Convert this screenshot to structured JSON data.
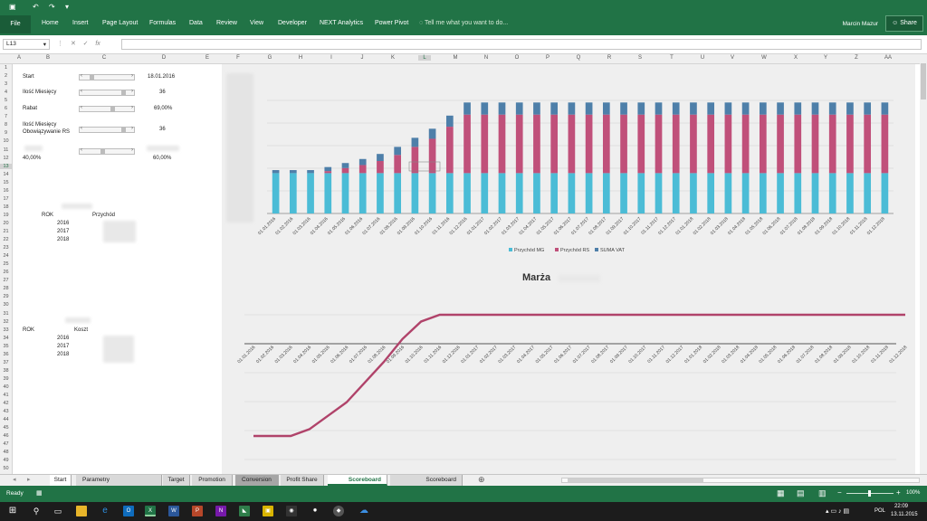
{
  "app": {
    "quick_access": [
      "↶",
      "↷",
      "▾"
    ]
  },
  "ribbon": {
    "file": "File",
    "tabs": [
      "Home",
      "Insert",
      "Page Layout",
      "Formulas",
      "Data",
      "Review",
      "View",
      "Developer",
      "NEXT Analytics",
      "Power Pivot"
    ],
    "tell_me": "Tell me what you want to do...",
    "user": "Marcin Mazur",
    "share": "Share"
  },
  "formula_bar": {
    "name_box": "L13",
    "fx": "fx",
    "formula": ""
  },
  "columns": [
    "A",
    "B",
    "C",
    "D",
    "E",
    "F",
    "G",
    "H",
    "I",
    "J",
    "K",
    "L",
    "M",
    "N",
    "O",
    "P",
    "Q",
    "R",
    "S",
    "T",
    "U",
    "V",
    "W",
    "X",
    "Y",
    "Z",
    "AA"
  ],
  "params": {
    "start_label": "Start",
    "start_value": "18.01.2016",
    "months_label": "Ilość Miesięcy",
    "months_value": "36",
    "rabat_label": "Rabat",
    "rabat_value": "69,00%",
    "rs_label_1": "Ilość Miesięcy",
    "rs_label_2": "Obowiązywanie RS",
    "rs_value": "36",
    "row12_left": "40,00%",
    "row12_right": "60,00%",
    "sb_start_fraction": 0.1,
    "sb_months_fraction": 0.95,
    "sb_rabat_fraction": 0.65,
    "sb_rs_fraction": 0.95,
    "sb_row11_fraction": 0.4
  },
  "table1": {
    "header_rok": "ROK",
    "header_przychod": "Przychód",
    "years": [
      "2016",
      "2017",
      "2018"
    ]
  },
  "table2": {
    "header_rok": "ROK",
    "header_koszt": "Koszt",
    "years": [
      "2016",
      "2017",
      "2018"
    ]
  },
  "chart_data": [
    {
      "type": "bar",
      "stacked": true,
      "categories": [
        "01.01.2016",
        "01.02.2016",
        "01.03.2016",
        "01.04.2016",
        "01.05.2016",
        "01.06.2016",
        "01.07.2016",
        "01.08.2016",
        "01.09.2016",
        "01.10.2016",
        "01.11.2016",
        "01.12.2016",
        "01.01.2017",
        "01.02.2017",
        "01.03.2017",
        "01.04.2017",
        "01.05.2017",
        "01.06.2017",
        "01.07.2017",
        "01.08.2017",
        "01.09.2017",
        "01.10.2017",
        "01.11.2017",
        "01.12.2017",
        "01.01.2018",
        "01.02.2018",
        "01.03.2018",
        "01.04.2018",
        "01.05.2018",
        "01.06.2018",
        "01.07.2018",
        "01.08.2018",
        "01.09.2018",
        "01.10.2018",
        "01.11.2018",
        "01.12.2018"
      ],
      "series": [
        {
          "name": "Przychód MG",
          "color": "#4bbcd6",
          "values": [
            40,
            40,
            40,
            40,
            40,
            40,
            40,
            40,
            40,
            40,
            40,
            40,
            40,
            40,
            40,
            40,
            40,
            40,
            40,
            40,
            40,
            40,
            40,
            40,
            40,
            40,
            40,
            40,
            40,
            40,
            40,
            40,
            40,
            40,
            40,
            40
          ]
        },
        {
          "name": "Przychód RS",
          "color": "#c0507a",
          "values": [
            0,
            0,
            0,
            2,
            5,
            8,
            12,
            18,
            26,
            34,
            46,
            58,
            58,
            58,
            58,
            58,
            58,
            58,
            58,
            58,
            58,
            58,
            58,
            58,
            58,
            58,
            58,
            58,
            58,
            58,
            58,
            58,
            58,
            58,
            58,
            58
          ]
        },
        {
          "name": "SUMA VAT",
          "color": "#4e7fa9",
          "values": [
            3,
            3,
            3,
            4,
            5,
            6,
            7,
            8,
            9,
            10,
            11,
            12,
            12,
            12,
            12,
            12,
            12,
            12,
            12,
            12,
            12,
            12,
            12,
            12,
            12,
            12,
            12,
            12,
            12,
            12,
            12,
            12,
            12,
            12,
            12,
            12
          ]
        }
      ],
      "ylim": [
        0,
        130
      ],
      "legend": "bottom"
    },
    {
      "type": "line",
      "title": "Marża",
      "categories": [
        "01.01.2016",
        "01.02.2016",
        "01.03.2016",
        "01.04.2016",
        "01.05.2016",
        "01.06.2016",
        "01.07.2016",
        "01.08.2016",
        "01.09.2016",
        "01.10.2016",
        "01.11.2016",
        "01.12.2016",
        "01.01.2017",
        "01.02.2017",
        "01.03.2017",
        "01.04.2017",
        "01.05.2017",
        "01.06.2017",
        "01.07.2017",
        "01.08.2017",
        "01.09.2017",
        "01.10.2017",
        "01.11.2017",
        "01.12.2017",
        "01.01.2018",
        "01.02.2018",
        "01.03.2018",
        "01.04.2018",
        "01.05.2018",
        "01.06.2018",
        "01.07.2018",
        "01.08.2018",
        "01.09.2018",
        "01.10.2018",
        "01.11.2018",
        "01.12.2018"
      ],
      "series": [
        {
          "color": "#b0436a",
          "values": [
            -90,
            -90,
            -90,
            -85,
            -75,
            -65,
            -50,
            -35,
            -18,
            -5,
            0,
            0,
            0,
            0,
            0,
            0,
            0,
            0,
            0,
            0,
            0,
            0,
            0,
            0,
            0,
            0,
            0,
            0,
            0,
            0,
            0,
            0,
            0,
            0,
            0,
            0
          ]
        }
      ],
      "ylim": [
        -100,
        20
      ]
    }
  ],
  "sheet_tabs": [
    {
      "label": "Start",
      "active": false
    },
    {
      "label": "Parametry",
      "active": false
    },
    {
      "label": "Target",
      "active": false
    },
    {
      "label": "Promotion",
      "active": false
    },
    {
      "label": "Conversion",
      "active": false
    },
    {
      "label": "Profit Share",
      "active": false
    },
    {
      "label": "Scoreboard",
      "active": true
    },
    {
      "label": "Scoreboard",
      "active": false
    }
  ],
  "status": {
    "ready": "Ready",
    "zoom": "100%"
  },
  "taskbar": {
    "lang": "POL",
    "time": "22:09",
    "date": "13.11.2015"
  }
}
